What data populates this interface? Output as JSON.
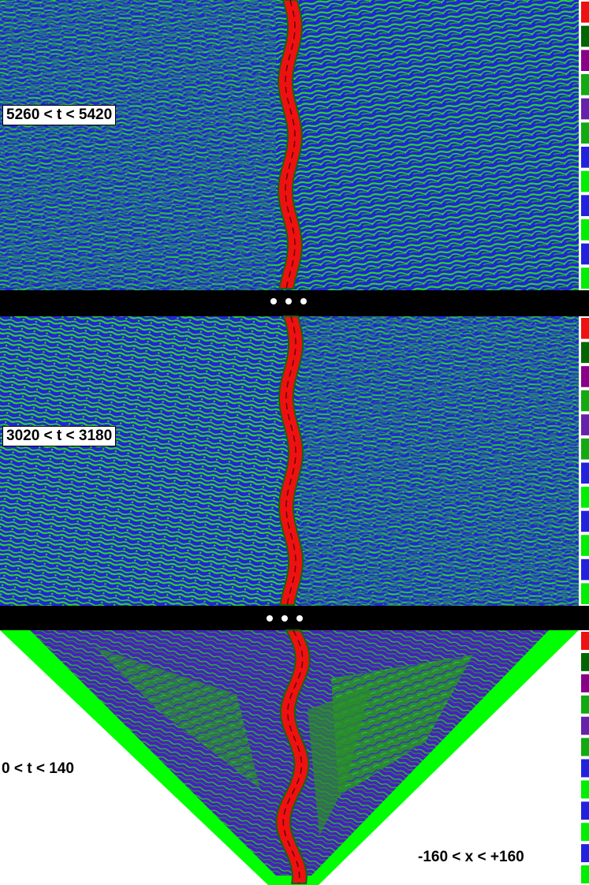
{
  "panels": [
    {
      "label": "5260 < t < 5420"
    },
    {
      "label": "3020 < t < 3180"
    },
    {
      "label": "0 < t < 140"
    }
  ],
  "x_range_label": "-160 < x < +160",
  "colors": {
    "blue": "#2222dd",
    "green": "#22dd22",
    "bright_green": "#00ff00",
    "dark_green": "#116611",
    "red": "#ee1111",
    "purple": "#6622bb",
    "black": "#000000",
    "white": "#ffffff"
  },
  "color_key": [
    "#00ee00",
    "#2222dd",
    "#00ee00",
    "#2222dd",
    "#00ee00",
    "#2222dd",
    "#11aa11",
    "#6622aa",
    "#11aa11",
    "#880088",
    "#006600",
    "#ee1111"
  ]
}
